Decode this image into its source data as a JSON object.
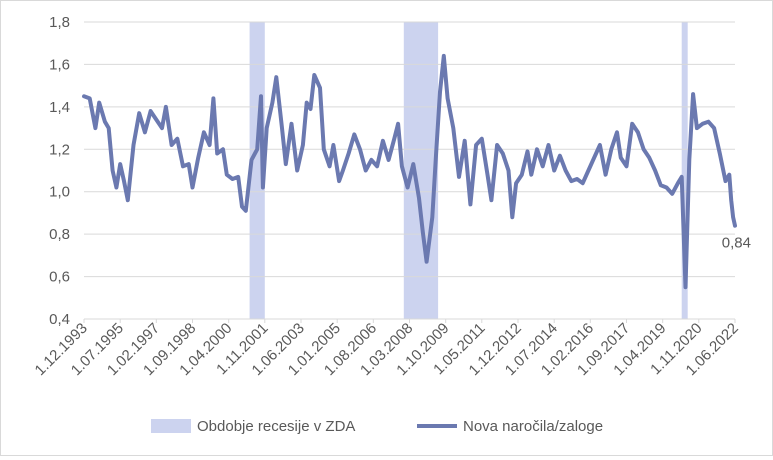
{
  "colors": {
    "line": "#6b79b0",
    "recession": "#ccd3ef",
    "grid": "#d9d9d9",
    "text": "#595959"
  },
  "chart_data": {
    "type": "line",
    "title": "",
    "xlabel": "",
    "ylabel": "",
    "ylim": [
      0.4,
      1.8
    ],
    "y_ticks": [
      "0,4",
      "0,6",
      "0,8",
      "1,0",
      "1,2",
      "1,4",
      "1,6",
      "1,8"
    ],
    "x_range": [
      "1993-12",
      "2022-06"
    ],
    "x_ticks": [
      "1.12.1993",
      "1.07.1995",
      "1.02.1997",
      "1.09.1998",
      "1.04.2000",
      "1.11.2001",
      "1.06.2003",
      "1.01.2005",
      "1.08.2006",
      "1.03.2008",
      "1.10.2009",
      "1.05.2011",
      "1.12.2012",
      "1.07.2014",
      "1.02.2016",
      "1.09.2017",
      "1.04.2019",
      "1.11.2020",
      "1.06.2022"
    ],
    "grid": "horizontal",
    "legend_position": "bottom",
    "recessions": [
      {
        "start": "2001-03",
        "end": "2001-11"
      },
      {
        "start": "2007-12",
        "end": "2009-06"
      },
      {
        "start": "2020-02",
        "end": "2020-04"
      }
    ],
    "legend": {
      "recession_label": "Obdobje recesije v ZDA",
      "series_label": "Nova naročila/zaloge"
    },
    "series": [
      {
        "name": "Nova naročila/zaloge",
        "points": [
          [
            "1993-12",
            1.45
          ],
          [
            "1994-03",
            1.44
          ],
          [
            "1994-06",
            1.3
          ],
          [
            "1994-08",
            1.42
          ],
          [
            "1994-11",
            1.33
          ],
          [
            "1995-01",
            1.3
          ],
          [
            "1995-03",
            1.1
          ],
          [
            "1995-05",
            1.02
          ],
          [
            "1995-07",
            1.13
          ],
          [
            "1995-09",
            1.05
          ],
          [
            "1995-11",
            0.96
          ],
          [
            "1996-02",
            1.22
          ],
          [
            "1996-05",
            1.37
          ],
          [
            "1996-08",
            1.28
          ],
          [
            "1996-11",
            1.38
          ],
          [
            "1997-02",
            1.34
          ],
          [
            "1997-05",
            1.3
          ],
          [
            "1997-07",
            1.4
          ],
          [
            "1997-10",
            1.22
          ],
          [
            "1998-01",
            1.25
          ],
          [
            "1998-04",
            1.12
          ],
          [
            "1998-07",
            1.13
          ],
          [
            "1998-09",
            1.02
          ],
          [
            "1998-12",
            1.16
          ],
          [
            "1999-03",
            1.28
          ],
          [
            "1999-06",
            1.22
          ],
          [
            "1999-08",
            1.44
          ],
          [
            "1999-10",
            1.18
          ],
          [
            "2000-01",
            1.2
          ],
          [
            "2000-03",
            1.08
          ],
          [
            "2000-06",
            1.06
          ],
          [
            "2000-09",
            1.07
          ],
          [
            "2000-11",
            0.93
          ],
          [
            "2001-01",
            0.91
          ],
          [
            "2001-04",
            1.15
          ],
          [
            "2001-07",
            1.2
          ],
          [
            "2001-09",
            1.45
          ],
          [
            "2001-10",
            1.02
          ],
          [
            "2001-12",
            1.3
          ],
          [
            "2002-03",
            1.42
          ],
          [
            "2002-05",
            1.54
          ],
          [
            "2002-08",
            1.3
          ],
          [
            "2002-10",
            1.13
          ],
          [
            "2003-01",
            1.32
          ],
          [
            "2003-04",
            1.1
          ],
          [
            "2003-07",
            1.22
          ],
          [
            "2003-09",
            1.42
          ],
          [
            "2003-11",
            1.39
          ],
          [
            "2004-01",
            1.55
          ],
          [
            "2004-04",
            1.49
          ],
          [
            "2004-06",
            1.2
          ],
          [
            "2004-09",
            1.12
          ],
          [
            "2004-11",
            1.22
          ],
          [
            "2005-02",
            1.05
          ],
          [
            "2005-04",
            1.1
          ],
          [
            "2005-07",
            1.18
          ],
          [
            "2005-10",
            1.27
          ],
          [
            "2006-01",
            1.2
          ],
          [
            "2006-04",
            1.1
          ],
          [
            "2006-07",
            1.15
          ],
          [
            "2006-10",
            1.12
          ],
          [
            "2007-01",
            1.24
          ],
          [
            "2007-04",
            1.15
          ],
          [
            "2007-07",
            1.25
          ],
          [
            "2007-09",
            1.32
          ],
          [
            "2007-11",
            1.12
          ],
          [
            "2008-02",
            1.02
          ],
          [
            "2008-05",
            1.13
          ],
          [
            "2008-08",
            0.97
          ],
          [
            "2008-10",
            0.81
          ],
          [
            "2008-12",
            0.67
          ],
          [
            "2009-03",
            0.88
          ],
          [
            "2009-05",
            1.18
          ],
          [
            "2009-07",
            1.47
          ],
          [
            "2009-09",
            1.64
          ],
          [
            "2009-11",
            1.44
          ],
          [
            "2010-02",
            1.3
          ],
          [
            "2010-05",
            1.07
          ],
          [
            "2010-08",
            1.24
          ],
          [
            "2010-11",
            0.94
          ],
          [
            "2011-02",
            1.22
          ],
          [
            "2011-05",
            1.25
          ],
          [
            "2011-08",
            1.08
          ],
          [
            "2011-10",
            0.96
          ],
          [
            "2012-01",
            1.22
          ],
          [
            "2012-04",
            1.18
          ],
          [
            "2012-07",
            1.1
          ],
          [
            "2012-09",
            0.88
          ],
          [
            "2012-11",
            1.04
          ],
          [
            "2013-02",
            1.08
          ],
          [
            "2013-05",
            1.19
          ],
          [
            "2013-07",
            1.08
          ],
          [
            "2013-10",
            1.2
          ],
          [
            "2014-01",
            1.12
          ],
          [
            "2014-04",
            1.22
          ],
          [
            "2014-07",
            1.1
          ],
          [
            "2014-10",
            1.17
          ],
          [
            "2015-01",
            1.1
          ],
          [
            "2015-04",
            1.05
          ],
          [
            "2015-07",
            1.06
          ],
          [
            "2015-10",
            1.04
          ],
          [
            "2016-01",
            1.1
          ],
          [
            "2016-04",
            1.16
          ],
          [
            "2016-07",
            1.22
          ],
          [
            "2016-10",
            1.08
          ],
          [
            "2017-01",
            1.2
          ],
          [
            "2017-04",
            1.28
          ],
          [
            "2017-06",
            1.16
          ],
          [
            "2017-09",
            1.12
          ],
          [
            "2017-12",
            1.32
          ],
          [
            "2018-03",
            1.28
          ],
          [
            "2018-06",
            1.2
          ],
          [
            "2018-09",
            1.16
          ],
          [
            "2018-12",
            1.1
          ],
          [
            "2019-03",
            1.03
          ],
          [
            "2019-06",
            1.02
          ],
          [
            "2019-09",
            0.99
          ],
          [
            "2019-12",
            1.04
          ],
          [
            "2020-02",
            1.07
          ],
          [
            "2020-04",
            0.55
          ],
          [
            "2020-06",
            1.15
          ],
          [
            "2020-08",
            1.46
          ],
          [
            "2020-10",
            1.3
          ],
          [
            "2021-01",
            1.32
          ],
          [
            "2021-04",
            1.33
          ],
          [
            "2021-07",
            1.3
          ],
          [
            "2021-10",
            1.18
          ],
          [
            "2022-01",
            1.05
          ],
          [
            "2022-03",
            1.08
          ],
          [
            "2022-04",
            0.96
          ],
          [
            "2022-05",
            0.88
          ],
          [
            "2022-06",
            0.84
          ]
        ]
      }
    ],
    "annotation": {
      "label": "0,84",
      "x": "2022-06",
      "y": 0.84
    }
  }
}
